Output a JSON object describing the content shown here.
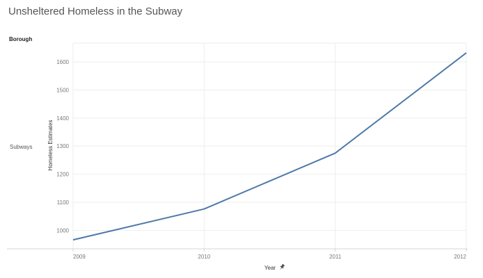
{
  "page": {
    "title": "Unsheltered Homeless in the Subway",
    "row_header": "Borough",
    "row_label": "Subways"
  },
  "colors": {
    "line": "#4e79a7",
    "grid": "#eeeeee",
    "axis": "#d4d4d4"
  },
  "icons": {
    "pin": "pin-icon"
  },
  "chart_data": {
    "type": "line",
    "title": "Unsheltered Homeless in the Subway",
    "xlabel": "Year",
    "ylabel": "Homeless Estimates",
    "x": [
      2009,
      2010,
      2011,
      2012
    ],
    "x_tick_labels": [
      "2009",
      "2010",
      "2011",
      "2012"
    ],
    "series": [
      {
        "values": [
          966,
          1076,
          1275,
          1632
        ]
      }
    ],
    "yticks": [
      1000,
      1100,
      1200,
      1300,
      1400,
      1500,
      1600
    ],
    "ytick_labels": [
      "1000",
      "1100",
      "1200",
      "1300",
      "1400",
      "1500",
      "1600"
    ],
    "ylim": [
      934,
      1667
    ],
    "xlim": [
      2009,
      2012
    ],
    "grid": true,
    "legend": "none"
  }
}
